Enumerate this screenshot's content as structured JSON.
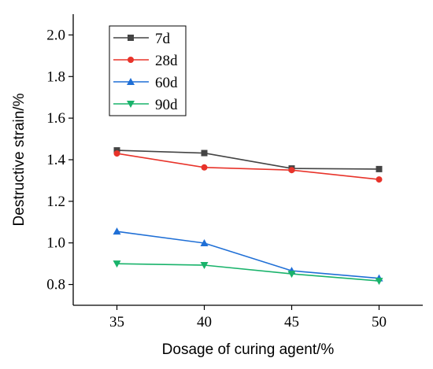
{
  "chart_data": {
    "type": "line",
    "title": "",
    "xlabel": "Dosage of curing agent/%",
    "ylabel": "Destructive strain/%",
    "x": [
      35,
      40,
      45,
      50
    ],
    "xlim": [
      32.5,
      52.5
    ],
    "ylim": [
      0.7,
      2.1
    ],
    "x_ticks": [
      "35",
      "40",
      "45",
      "50"
    ],
    "y_ticks": [
      "0.8",
      "1.0",
      "1.2",
      "1.4",
      "1.6",
      "1.8",
      "2.0"
    ],
    "grid": false,
    "legend_position": "top-left",
    "series": [
      {
        "name": "7d",
        "color": "#444444",
        "marker": "square",
        "values": [
          1.445,
          1.432,
          1.358,
          1.355
        ]
      },
      {
        "name": "28d",
        "color": "#e8332a",
        "marker": "circle",
        "values": [
          1.43,
          1.363,
          1.35,
          1.305
        ]
      },
      {
        "name": "60d",
        "color": "#1f6fd6",
        "marker": "triangle-up",
        "values": [
          1.055,
          0.999,
          0.866,
          0.83
        ]
      },
      {
        "name": "90d",
        "color": "#19b36b",
        "marker": "triangle-down",
        "values": [
          0.9,
          0.893,
          0.851,
          0.817
        ]
      }
    ]
  }
}
